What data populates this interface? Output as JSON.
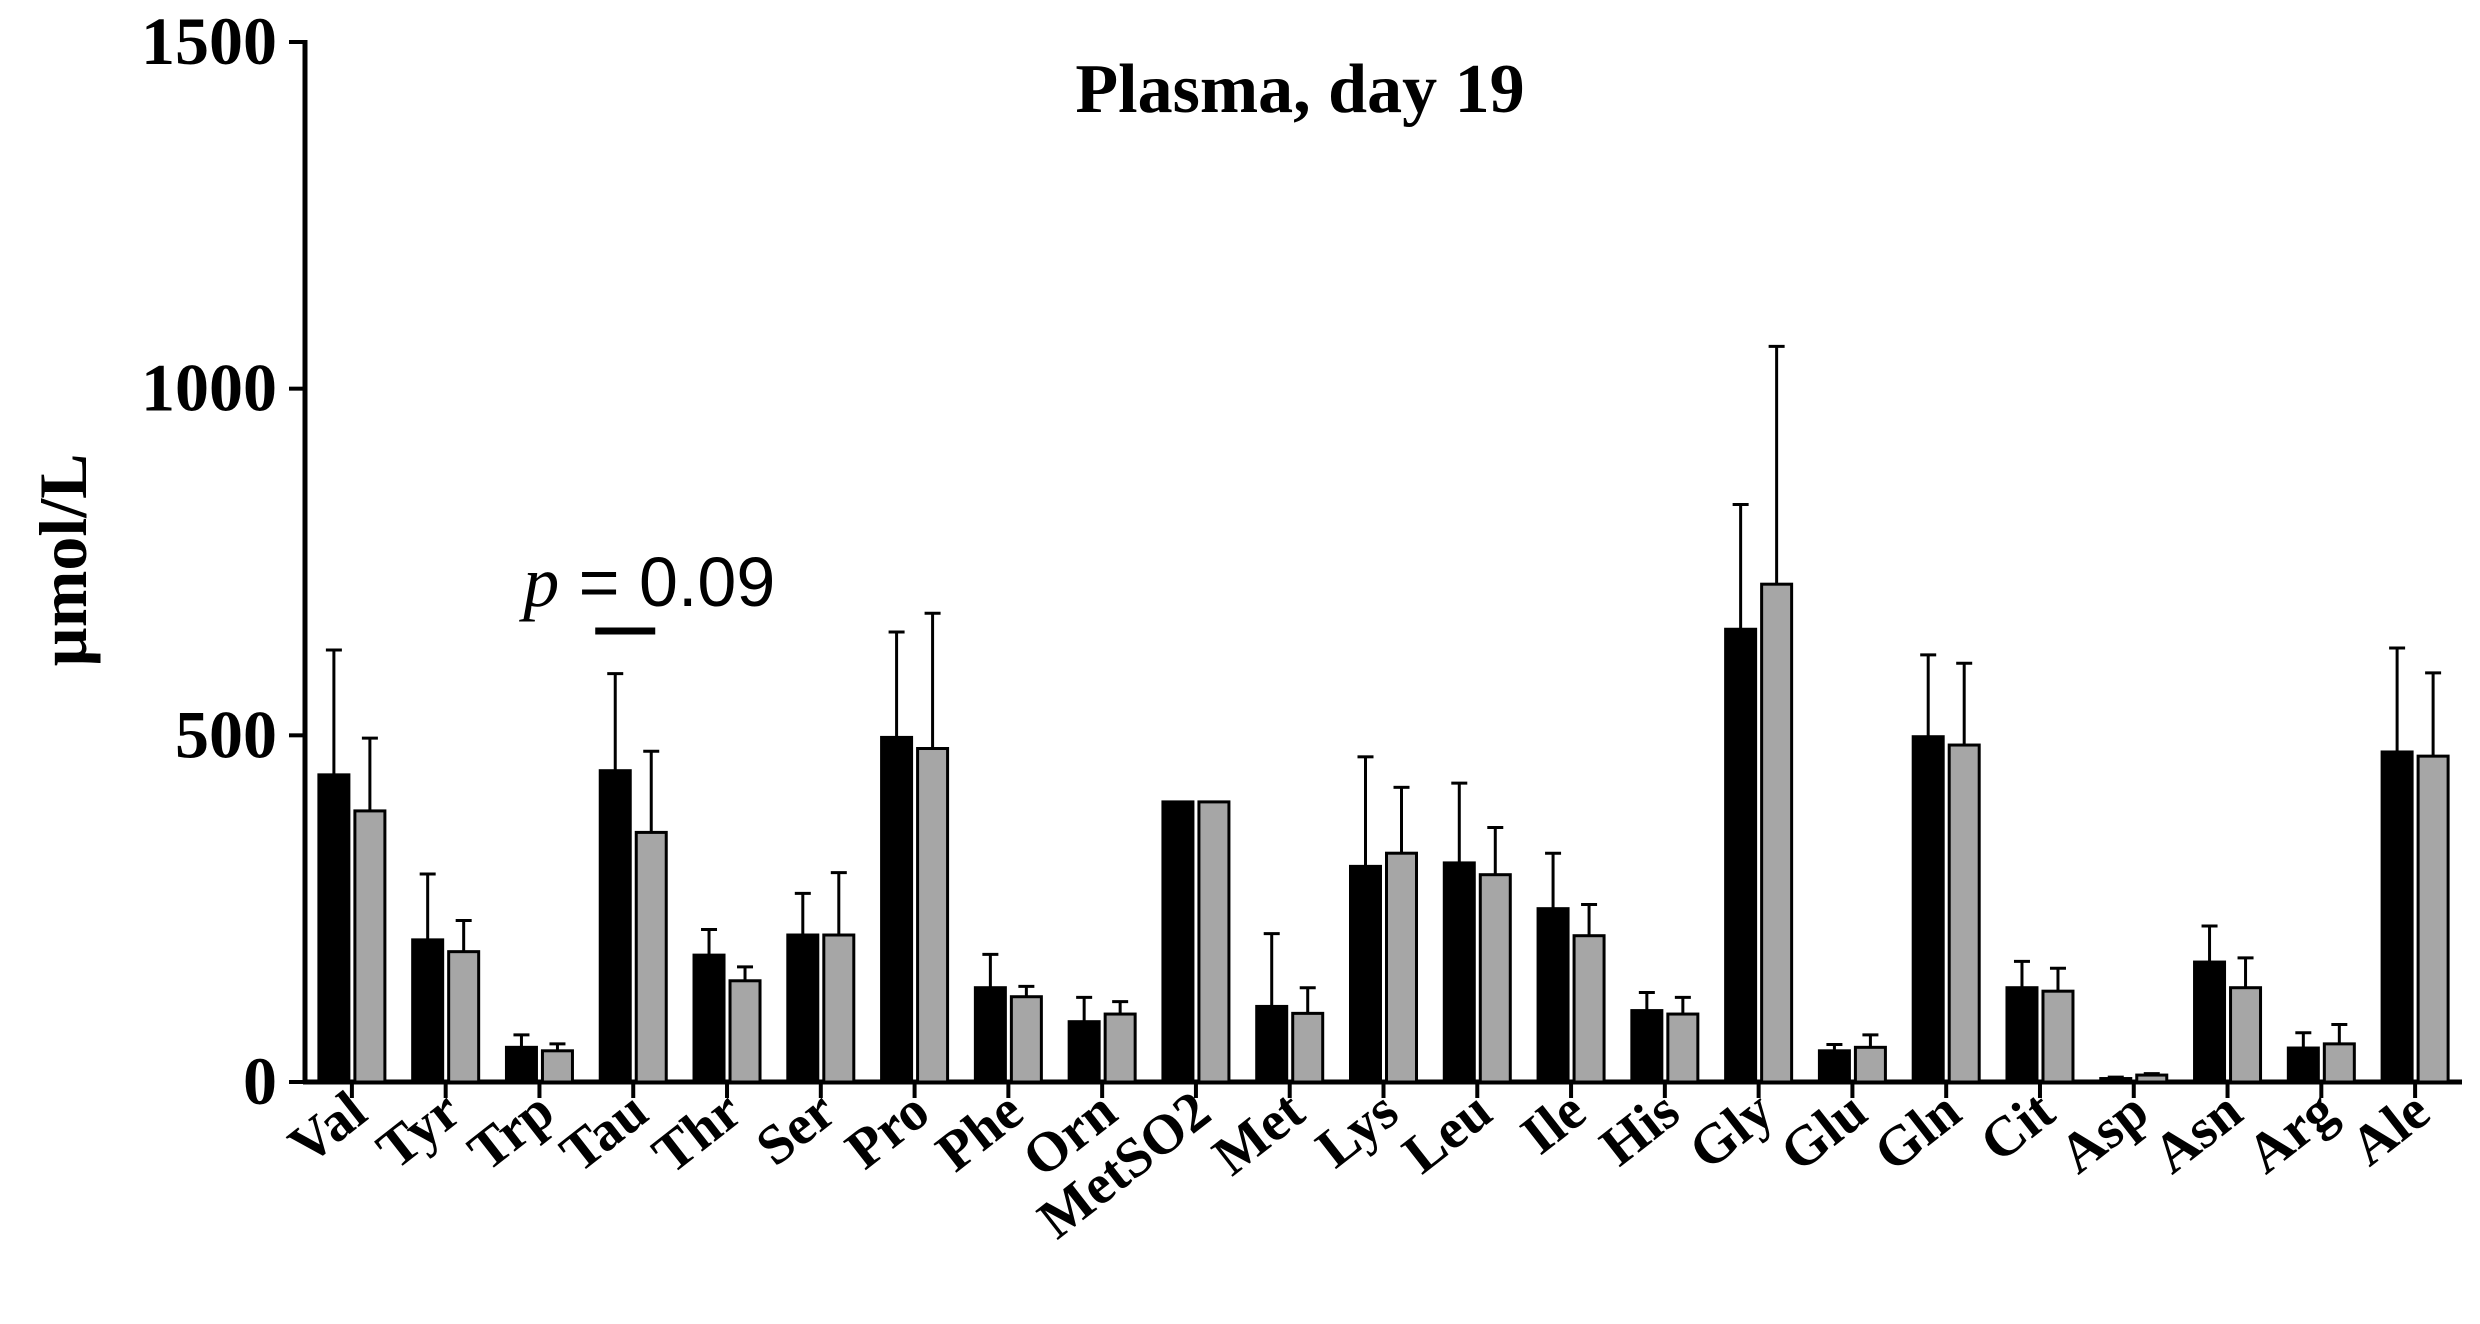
{
  "chart_data": {
    "type": "bar",
    "title": "Plasma, day 19",
    "ylabel": "µmol/L",
    "xlabel": "",
    "ylim": [
      0,
      1500
    ],
    "yticks": [
      0,
      500,
      1000,
      1500
    ],
    "grid": false,
    "legend": "none",
    "categories": [
      "Val",
      "Tyr",
      "Trp",
      "Tau",
      "Thr",
      "Ser",
      "Pro",
      "Phe",
      "Orn",
      "MetSO2",
      "Met",
      "Lys",
      "Leu",
      "Ile",
      "His",
      "Gly",
      "Glu",
      "Gln",
      "Cit",
      "Asp",
      "Asn",
      "Arg",
      "Ale"
    ],
    "series": [
      {
        "color": "#000000",
        "values": [
          443,
          205,
          50,
          449,
          183,
          212,
          497,
          136,
          87,
          404,
          109,
          311,
          316,
          250,
          103,
          653,
          45,
          498,
          136,
          5,
          173,
          49,
          476
        ],
        "error": [
          180,
          95,
          18,
          140,
          37,
          60,
          152,
          48,
          35,
          0,
          105,
          158,
          115,
          80,
          26,
          180,
          9,
          118,
          38,
          2,
          52,
          22,
          150
        ]
      },
      {
        "color": "#a6a6a6",
        "values": [
          391,
          188,
          45,
          360,
          146,
          212,
          481,
          123,
          98,
          404,
          99,
          330,
          299,
          211,
          98,
          718,
          50,
          486,
          131,
          10,
          136,
          55,
          470
        ],
        "error": [
          105,
          45,
          10,
          117,
          20,
          90,
          195,
          15,
          18,
          0,
          37,
          95,
          68,
          45,
          24,
          343,
          18,
          118,
          33,
          2,
          43,
          28,
          120
        ]
      }
    ],
    "annotations": [
      {
        "text_italic": "p",
        "text": " = 0.09",
        "category": "Tau"
      }
    ]
  }
}
